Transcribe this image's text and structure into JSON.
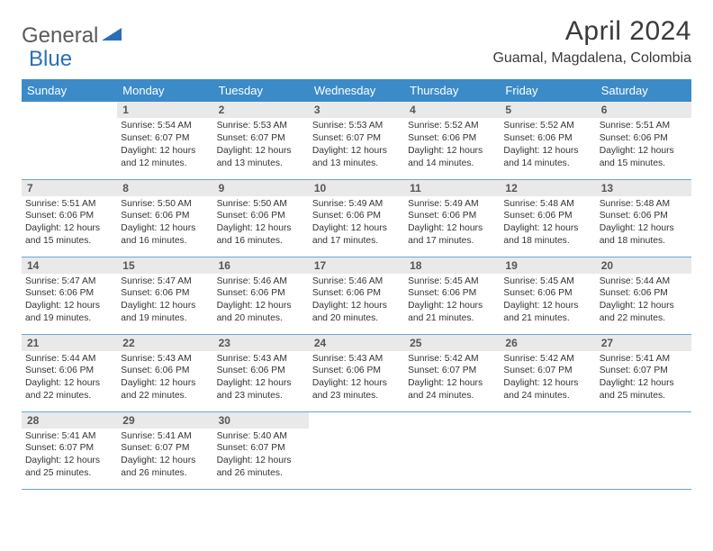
{
  "logo": {
    "part1": "General",
    "part2": "Blue"
  },
  "title": "April 2024",
  "location": "Guamal, Magdalena, Colombia",
  "colors": {
    "header_bg": "#3b8bc9",
    "header_text": "#ffffff",
    "daynum_bg": "#e9e9e9",
    "border": "#6aa6d4",
    "logo_gray": "#5a5a5a",
    "logo_blue": "#2a6fb5"
  },
  "weekdays": [
    "Sunday",
    "Monday",
    "Tuesday",
    "Wednesday",
    "Thursday",
    "Friday",
    "Saturday"
  ],
  "weeks": [
    [
      {
        "day": "",
        "sunrise": "",
        "sunset": "",
        "daylight": ""
      },
      {
        "day": "1",
        "sunrise": "Sunrise: 5:54 AM",
        "sunset": "Sunset: 6:07 PM",
        "daylight": "Daylight: 12 hours and 12 minutes."
      },
      {
        "day": "2",
        "sunrise": "Sunrise: 5:53 AM",
        "sunset": "Sunset: 6:07 PM",
        "daylight": "Daylight: 12 hours and 13 minutes."
      },
      {
        "day": "3",
        "sunrise": "Sunrise: 5:53 AM",
        "sunset": "Sunset: 6:07 PM",
        "daylight": "Daylight: 12 hours and 13 minutes."
      },
      {
        "day": "4",
        "sunrise": "Sunrise: 5:52 AM",
        "sunset": "Sunset: 6:06 PM",
        "daylight": "Daylight: 12 hours and 14 minutes."
      },
      {
        "day": "5",
        "sunrise": "Sunrise: 5:52 AM",
        "sunset": "Sunset: 6:06 PM",
        "daylight": "Daylight: 12 hours and 14 minutes."
      },
      {
        "day": "6",
        "sunrise": "Sunrise: 5:51 AM",
        "sunset": "Sunset: 6:06 PM",
        "daylight": "Daylight: 12 hours and 15 minutes."
      }
    ],
    [
      {
        "day": "7",
        "sunrise": "Sunrise: 5:51 AM",
        "sunset": "Sunset: 6:06 PM",
        "daylight": "Daylight: 12 hours and 15 minutes."
      },
      {
        "day": "8",
        "sunrise": "Sunrise: 5:50 AM",
        "sunset": "Sunset: 6:06 PM",
        "daylight": "Daylight: 12 hours and 16 minutes."
      },
      {
        "day": "9",
        "sunrise": "Sunrise: 5:50 AM",
        "sunset": "Sunset: 6:06 PM",
        "daylight": "Daylight: 12 hours and 16 minutes."
      },
      {
        "day": "10",
        "sunrise": "Sunrise: 5:49 AM",
        "sunset": "Sunset: 6:06 PM",
        "daylight": "Daylight: 12 hours and 17 minutes."
      },
      {
        "day": "11",
        "sunrise": "Sunrise: 5:49 AM",
        "sunset": "Sunset: 6:06 PM",
        "daylight": "Daylight: 12 hours and 17 minutes."
      },
      {
        "day": "12",
        "sunrise": "Sunrise: 5:48 AM",
        "sunset": "Sunset: 6:06 PM",
        "daylight": "Daylight: 12 hours and 18 minutes."
      },
      {
        "day": "13",
        "sunrise": "Sunrise: 5:48 AM",
        "sunset": "Sunset: 6:06 PM",
        "daylight": "Daylight: 12 hours and 18 minutes."
      }
    ],
    [
      {
        "day": "14",
        "sunrise": "Sunrise: 5:47 AM",
        "sunset": "Sunset: 6:06 PM",
        "daylight": "Daylight: 12 hours and 19 minutes."
      },
      {
        "day": "15",
        "sunrise": "Sunrise: 5:47 AM",
        "sunset": "Sunset: 6:06 PM",
        "daylight": "Daylight: 12 hours and 19 minutes."
      },
      {
        "day": "16",
        "sunrise": "Sunrise: 5:46 AM",
        "sunset": "Sunset: 6:06 PM",
        "daylight": "Daylight: 12 hours and 20 minutes."
      },
      {
        "day": "17",
        "sunrise": "Sunrise: 5:46 AM",
        "sunset": "Sunset: 6:06 PM",
        "daylight": "Daylight: 12 hours and 20 minutes."
      },
      {
        "day": "18",
        "sunrise": "Sunrise: 5:45 AM",
        "sunset": "Sunset: 6:06 PM",
        "daylight": "Daylight: 12 hours and 21 minutes."
      },
      {
        "day": "19",
        "sunrise": "Sunrise: 5:45 AM",
        "sunset": "Sunset: 6:06 PM",
        "daylight": "Daylight: 12 hours and 21 minutes."
      },
      {
        "day": "20",
        "sunrise": "Sunrise: 5:44 AM",
        "sunset": "Sunset: 6:06 PM",
        "daylight": "Daylight: 12 hours and 22 minutes."
      }
    ],
    [
      {
        "day": "21",
        "sunrise": "Sunrise: 5:44 AM",
        "sunset": "Sunset: 6:06 PM",
        "daylight": "Daylight: 12 hours and 22 minutes."
      },
      {
        "day": "22",
        "sunrise": "Sunrise: 5:43 AM",
        "sunset": "Sunset: 6:06 PM",
        "daylight": "Daylight: 12 hours and 22 minutes."
      },
      {
        "day": "23",
        "sunrise": "Sunrise: 5:43 AM",
        "sunset": "Sunset: 6:06 PM",
        "daylight": "Daylight: 12 hours and 23 minutes."
      },
      {
        "day": "24",
        "sunrise": "Sunrise: 5:43 AM",
        "sunset": "Sunset: 6:06 PM",
        "daylight": "Daylight: 12 hours and 23 minutes."
      },
      {
        "day": "25",
        "sunrise": "Sunrise: 5:42 AM",
        "sunset": "Sunset: 6:07 PM",
        "daylight": "Daylight: 12 hours and 24 minutes."
      },
      {
        "day": "26",
        "sunrise": "Sunrise: 5:42 AM",
        "sunset": "Sunset: 6:07 PM",
        "daylight": "Daylight: 12 hours and 24 minutes."
      },
      {
        "day": "27",
        "sunrise": "Sunrise: 5:41 AM",
        "sunset": "Sunset: 6:07 PM",
        "daylight": "Daylight: 12 hours and 25 minutes."
      }
    ],
    [
      {
        "day": "28",
        "sunrise": "Sunrise: 5:41 AM",
        "sunset": "Sunset: 6:07 PM",
        "daylight": "Daylight: 12 hours and 25 minutes."
      },
      {
        "day": "29",
        "sunrise": "Sunrise: 5:41 AM",
        "sunset": "Sunset: 6:07 PM",
        "daylight": "Daylight: 12 hours and 26 minutes."
      },
      {
        "day": "30",
        "sunrise": "Sunrise: 5:40 AM",
        "sunset": "Sunset: 6:07 PM",
        "daylight": "Daylight: 12 hours and 26 minutes."
      },
      {
        "day": "",
        "sunrise": "",
        "sunset": "",
        "daylight": ""
      },
      {
        "day": "",
        "sunrise": "",
        "sunset": "",
        "daylight": ""
      },
      {
        "day": "",
        "sunrise": "",
        "sunset": "",
        "daylight": ""
      },
      {
        "day": "",
        "sunrise": "",
        "sunset": "",
        "daylight": ""
      }
    ]
  ]
}
